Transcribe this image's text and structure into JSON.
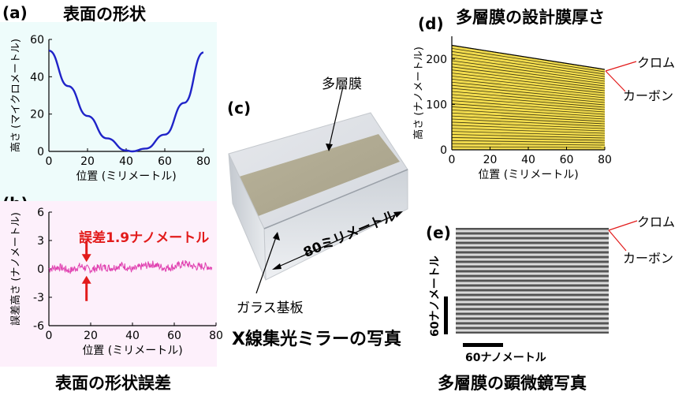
{
  "panels": {
    "a": {
      "label": "(a)",
      "title": "表面の形状"
    },
    "b": {
      "label": "(b)",
      "title": "表面の形状誤差"
    },
    "c": {
      "label": "(c)",
      "title": "X線集光ミラーの写真"
    },
    "d": {
      "label": "(d)",
      "title": "多層膜の設計膜厚さ"
    },
    "e": {
      "label": "(e)",
      "title": "多層膜の顕微鏡写真"
    }
  },
  "annotations": {
    "error_text": "誤差1.9ナノメートル",
    "multilayer": "多層膜",
    "glass_substrate": "ガラス基板",
    "length": "80ミリメートル",
    "chromium": "クロム",
    "carbon": "カーボン",
    "scale_vertical": "60ナノメートル",
    "scale_horizontal": "60ナノメートル"
  },
  "colors": {
    "curve_a": "#1f23c8",
    "curve_b": "#e040b0",
    "arrow_red": "#e21b1b",
    "film_yellow": "#f2dc4e",
    "bg_a": "#eefcfb",
    "bg_b": "#fdf0fb"
  },
  "chart_data": [
    {
      "id": "a",
      "type": "line",
      "title": "表面の形状",
      "xlabel": "位置 (ミリメートル)",
      "ylabel": "高さ (マイクロメートル)",
      "xlim": [
        0,
        80
      ],
      "ylim": [
        0,
        60
      ],
      "xticks": [
        0,
        20,
        40,
        60,
        80
      ],
      "yticks": [
        0,
        20,
        40,
        60
      ],
      "x": [
        0,
        10,
        20,
        30,
        40,
        43,
        50,
        60,
        70,
        80
      ],
      "y": [
        54,
        35,
        19,
        7,
        0.5,
        0,
        1.5,
        9,
        26,
        53
      ]
    },
    {
      "id": "b",
      "type": "line",
      "title": "表面の形状誤差",
      "xlabel": "位置 (ミリメートル)",
      "ylabel": "誤差高さ (ナノメートル)",
      "xlim": [
        0,
        80
      ],
      "ylim": [
        -6,
        6
      ],
      "xticks": [
        0,
        20,
        40,
        60,
        80
      ],
      "yticks": [
        -6,
        -3,
        0,
        3,
        6
      ],
      "x": [
        0,
        5,
        10,
        15,
        20,
        25,
        30,
        35,
        40,
        45,
        50,
        55,
        60,
        65,
        70,
        75,
        78
      ],
      "y": [
        0,
        0.2,
        -0.2,
        0.3,
        -0.1,
        0.2,
        0.1,
        0.4,
        -0.1,
        0.3,
        0.5,
        0.1,
        0.2,
        0.6,
        0.2,
        0.3,
        0.1
      ]
    },
    {
      "id": "d",
      "type": "line",
      "title": "多層膜の設計膜厚さ",
      "xlabel": "位置 (ミリメートル)",
      "ylabel": "高さ (ナノメートル)",
      "xlim": [
        0,
        80
      ],
      "ylim": [
        0,
        250
      ],
      "xticks": [
        0,
        20,
        40,
        60,
        80
      ],
      "yticks": [
        0,
        100,
        200
      ],
      "series": [
        {
          "x": [
            0,
            80
          ],
          "y": [
            230,
            177
          ]
        }
      ]
    }
  ]
}
